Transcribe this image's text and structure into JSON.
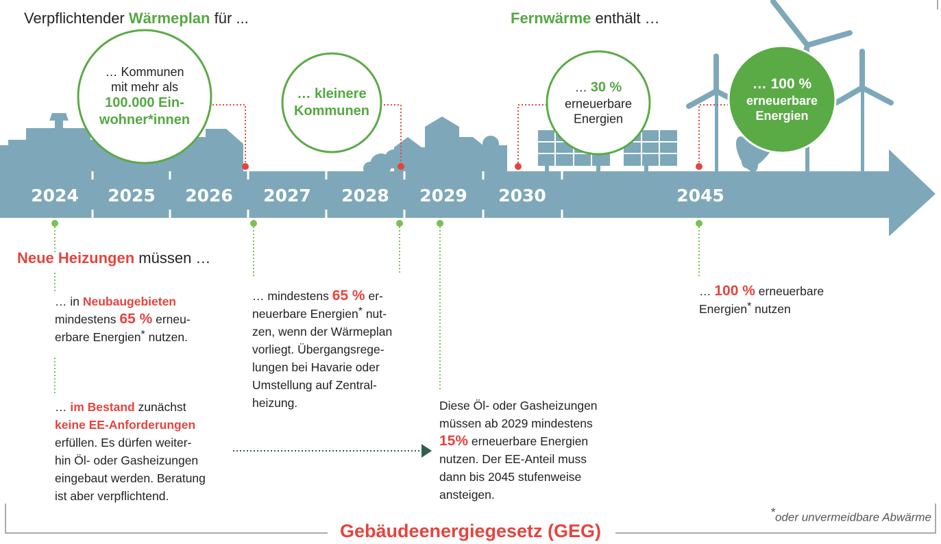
{
  "heat_plan": {
    "prefix": "Verpflichtender",
    "highlight": "Wärmeplan",
    "suffix": "für ..."
  },
  "district_heating": {
    "highlight": "Fernwärme",
    "suffix": "enthält …"
  },
  "years": [
    "2024",
    "2025",
    "2026",
    "2027",
    "2028",
    "2029",
    "2030",
    "2045"
  ],
  "circles": [
    {
      "lines": [
        [
          "… Kommunen"
        ],
        [
          "mit mehr als"
        ],
        [
          "100.000 Ein-"
        ],
        [
          "wohner*innen"
        ]
      ]
    },
    {
      "lines": [
        [
          "… kleinere"
        ],
        [
          "Kommunen"
        ]
      ]
    },
    {
      "lines": [
        [
          "…",
          "30 %"
        ],
        [
          "erneuerbare"
        ],
        [
          "Energien"
        ]
      ]
    },
    {
      "lines": [
        [
          "… 100 %"
        ],
        [
          "erneuerbare"
        ],
        [
          "Energien"
        ]
      ]
    }
  ],
  "heating_title": {
    "highlight": "Neue Heizungen",
    "suffix": "müssen …"
  },
  "notes": [
    {
      "lines": [
        [
          "… in",
          "Neubaugebieten"
        ],
        [
          "mindestens",
          "65 %",
          "erneu-"
        ],
        [
          "erbare Energien",
          "*",
          "nutzen."
        ]
      ]
    },
    {
      "lines": [
        [
          "…",
          "im Bestand",
          "zunächst"
        ],
        [
          "keine EE-Anforderungen"
        ],
        [
          "erfüllen. Es dürfen weiter-"
        ],
        [
          "hin Öl- oder Gasheizungen"
        ],
        [
          "eingebaut werden. Beratung"
        ],
        [
          "ist aber verpflichtend."
        ]
      ]
    },
    {
      "lines": [
        [
          "… mindestens",
          "65 %",
          "er-"
        ],
        [
          "neuerbare Energien",
          "*",
          "nut-"
        ],
        [
          "zen, wenn der Wärmeplan"
        ],
        [
          "vorliegt. Übergangsrege-"
        ],
        [
          "lungen bei Havarie oder"
        ],
        [
          "Umstellung auf Zentral-"
        ],
        [
          "heizung."
        ]
      ]
    },
    {
      "lines": [
        [
          "Diese Öl- oder Gasheizungen"
        ],
        [
          "müssen ab 2029 mindestens"
        ],
        [
          "15%",
          "erneuerbare Energien"
        ],
        [
          "nutzen. Der EE-Anteil muss"
        ],
        [
          "dann bis 2045 stufenweise"
        ],
        [
          "ansteigen."
        ]
      ]
    },
    {
      "lines": [
        [
          "…",
          "100 %",
          "erneuerbare"
        ],
        [
          "Energien",
          "*",
          "nutzen"
        ]
      ]
    }
  ],
  "footnote": {
    "mark": "*",
    "text": "oder unvermeidbare Abwärme"
  },
  "footer": "Gebäudeenergiegesetz (GEG)"
}
